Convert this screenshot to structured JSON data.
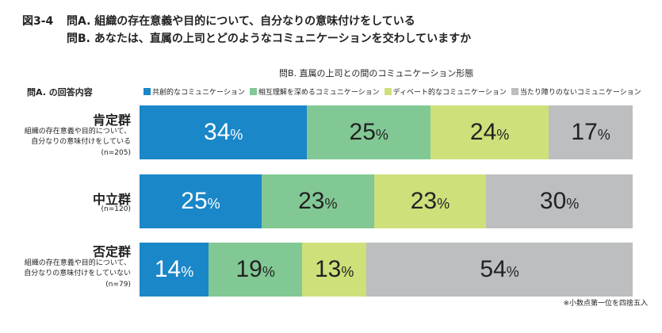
{
  "header": {
    "figure_number": "図3-4",
    "question_a": "問A. 組織の存在意義や目的について、自分なりの意味付けをしている",
    "question_b": "問B. あなたは、直属の上司とどのようなコミュニケーションを交わしていますか"
  },
  "chart_data": {
    "type": "bar",
    "orientation": "horizontal",
    "stacked": true,
    "title": "問B. 直属の上司との間のコミュニケーション形態",
    "row_axis_label": "問A. の回答内容",
    "percent_sign": "%",
    "categories": [
      "肯定群",
      "中立群",
      "否定群"
    ],
    "category_descriptions": [
      [
        "組織の存在意義や目的について、",
        "自分なりの意味付けをしている",
        "(n=205)"
      ],
      [
        "(n=120)"
      ],
      [
        "組織の存在意義や目的について、",
        "自分なりの意味付けをしていない",
        "(n=79)"
      ]
    ],
    "series": [
      {
        "name": "共創的なコミュニケーション",
        "color": "#1a87c8",
        "text_color": "#ffffff",
        "values": [
          34,
          25,
          14
        ]
      },
      {
        "name": "相互理解を深めるコミュニケーション",
        "color": "#82c895",
        "text_color": "#222222",
        "values": [
          25,
          23,
          19
        ]
      },
      {
        "name": "ディベート的なコミュニケーション",
        "color": "#cde07a",
        "text_color": "#222222",
        "values": [
          24,
          23,
          13
        ]
      },
      {
        "name": "当たり障りのないコミュニケーション",
        "color": "#bcbec0",
        "text_color": "#222222",
        "values": [
          17,
          30,
          54
        ]
      }
    ],
    "footnote": "※小数点第一位を四捨五入"
  }
}
